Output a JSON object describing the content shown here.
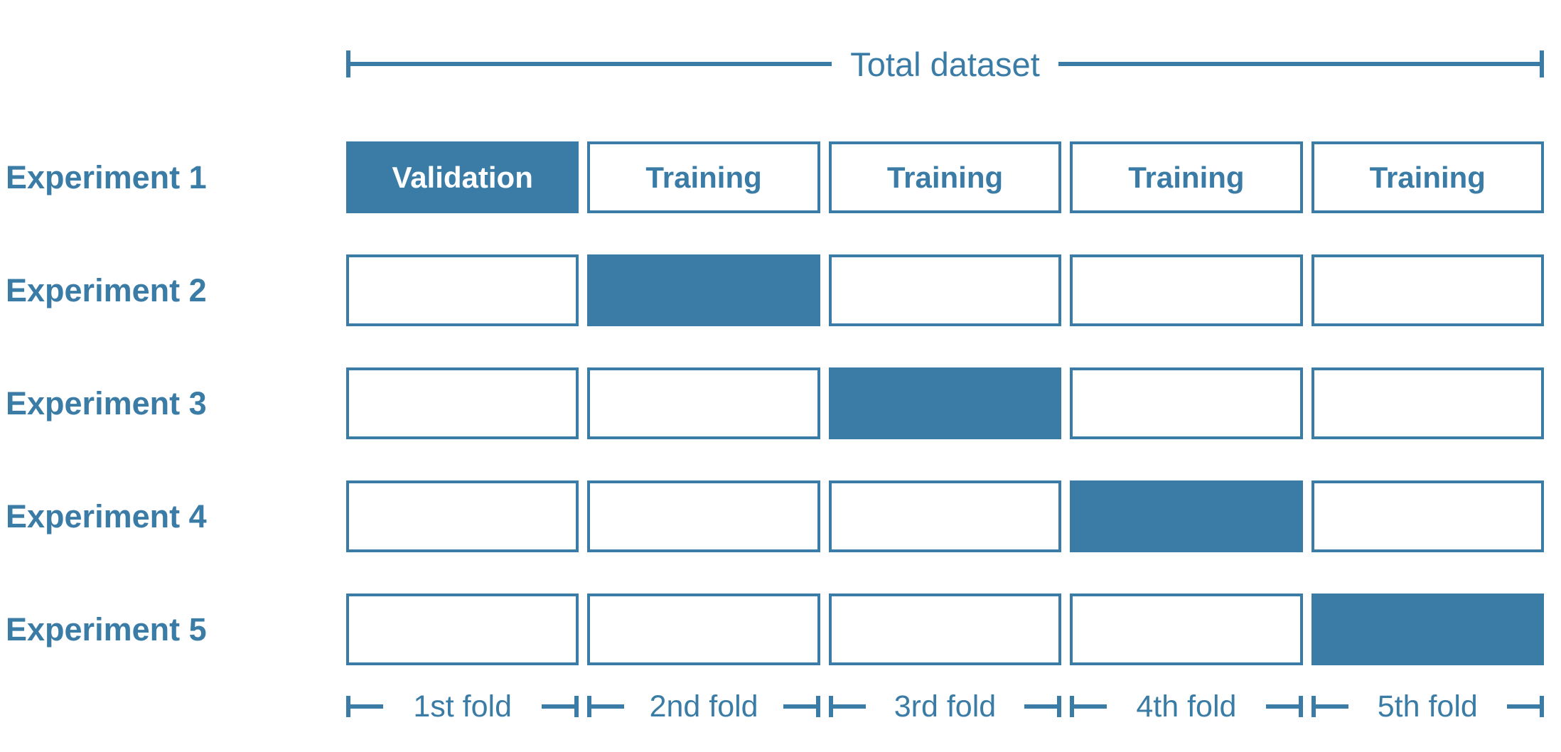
{
  "colors": {
    "accent": "#3a7ca6",
    "validation_text": "#ffffff",
    "background": "#ffffff"
  },
  "header": {
    "label": "Total dataset"
  },
  "experiments": [
    {
      "label": "Experiment 1",
      "cells": [
        {
          "label": "Validation",
          "filled": true
        },
        {
          "label": "Training",
          "filled": false
        },
        {
          "label": "Training",
          "filled": false
        },
        {
          "label": "Training",
          "filled": false
        },
        {
          "label": "Training",
          "filled": false
        }
      ]
    },
    {
      "label": "Experiment 2",
      "cells": [
        {
          "label": "",
          "filled": false
        },
        {
          "label": "",
          "filled": true
        },
        {
          "label": "",
          "filled": false
        },
        {
          "label": "",
          "filled": false
        },
        {
          "label": "",
          "filled": false
        }
      ]
    },
    {
      "label": "Experiment 3",
      "cells": [
        {
          "label": "",
          "filled": false
        },
        {
          "label": "",
          "filled": false
        },
        {
          "label": "",
          "filled": true
        },
        {
          "label": "",
          "filled": false
        },
        {
          "label": "",
          "filled": false
        }
      ]
    },
    {
      "label": "Experiment 4",
      "cells": [
        {
          "label": "",
          "filled": false
        },
        {
          "label": "",
          "filled": false
        },
        {
          "label": "",
          "filled": false
        },
        {
          "label": "",
          "filled": true
        },
        {
          "label": "",
          "filled": false
        }
      ]
    },
    {
      "label": "Experiment 5",
      "cells": [
        {
          "label": "",
          "filled": false
        },
        {
          "label": "",
          "filled": false
        },
        {
          "label": "",
          "filled": false
        },
        {
          "label": "",
          "filled": false
        },
        {
          "label": "",
          "filled": true
        }
      ]
    }
  ],
  "folds": [
    {
      "label": "1st fold"
    },
    {
      "label": "2nd fold"
    },
    {
      "label": "3rd fold"
    },
    {
      "label": "4th fold"
    },
    {
      "label": "5th fold"
    }
  ]
}
